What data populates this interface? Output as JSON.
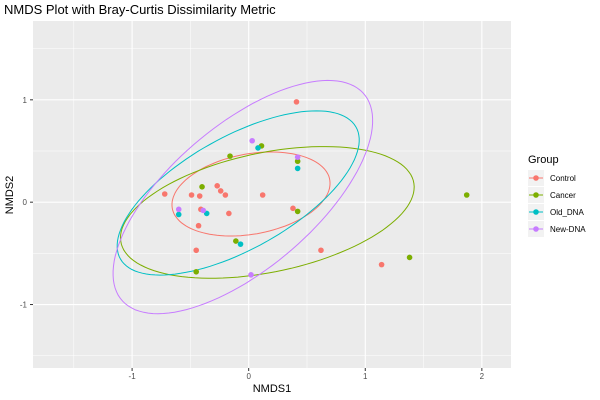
{
  "chart_data": {
    "type": "scatter",
    "title": "NMDS Plot with Bray-Curtis Dissimilarity Metric",
    "xlabel": "NMDS1",
    "ylabel": "NMDS2",
    "xlim": [
      -1.85,
      2.25
    ],
    "ylim": [
      -1.62,
      1.77
    ],
    "x_ticks": [
      -1,
      0,
      1,
      2
    ],
    "y_ticks": [
      -1,
      0,
      1
    ],
    "grid": true,
    "legend": {
      "title": "Group",
      "position": "right"
    },
    "series": [
      {
        "name": "Control",
        "color": "#F8766D",
        "points": [
          [
            0.41,
            0.98
          ],
          [
            -0.72,
            0.08
          ],
          [
            -0.49,
            0.07
          ],
          [
            -0.27,
            0.16
          ],
          [
            -0.24,
            0.11
          ],
          [
            -0.2,
            0.07
          ],
          [
            -0.42,
            0.06
          ],
          [
            0.12,
            0.07
          ],
          [
            -0.43,
            -0.23
          ],
          [
            -0.41,
            -0.07
          ],
          [
            -0.17,
            -0.11
          ],
          [
            -0.45,
            -0.47
          ],
          [
            0.38,
            -0.06
          ],
          [
            0.62,
            -0.47
          ],
          [
            1.14,
            -0.61
          ]
        ],
        "ellipse": {
          "center": [
            0.02,
            0.08
          ],
          "rx": 0.69,
          "ry": 0.39,
          "angle_deg": 13
        }
      },
      {
        "name": "Cancer",
        "color": "#7CAE00",
        "points": [
          [
            -0.16,
            0.45
          ],
          [
            0.11,
            0.55
          ],
          [
            0.42,
            0.4
          ],
          [
            -0.4,
            0.15
          ],
          [
            1.87,
            0.07
          ],
          [
            0.42,
            -0.09
          ],
          [
            -0.11,
            -0.38
          ],
          [
            1.38,
            -0.54
          ],
          [
            -0.45,
            -0.68
          ]
        ],
        "ellipse": {
          "center": [
            0.16,
            -0.1
          ],
          "rx": 1.29,
          "ry": 0.58,
          "angle_deg": 14
        }
      },
      {
        "name": "Old_DNA",
        "color": "#00BFC4",
        "points": [
          [
            0.08,
            0.53
          ],
          [
            0.42,
            0.33
          ],
          [
            -0.6,
            -0.12
          ],
          [
            -0.36,
            -0.11
          ],
          [
            -0.07,
            -0.41
          ]
        ],
        "ellipse": {
          "center": [
            -0.09,
            0.09
          ],
          "rx": 1.2,
          "ry": 0.53,
          "angle_deg": 34
        }
      },
      {
        "name": "New-DNA",
        "color": "#C77CFF",
        "points": [
          [
            0.03,
            0.6
          ],
          [
            0.42,
            0.44
          ],
          [
            -0.6,
            -0.07
          ],
          [
            -0.39,
            -0.08
          ],
          [
            0.02,
            -0.71
          ]
        ],
        "ellipse": {
          "center": [
            -0.05,
            0.05
          ],
          "rx": 1.45,
          "ry": 0.66,
          "angle_deg": 46
        }
      }
    ]
  }
}
